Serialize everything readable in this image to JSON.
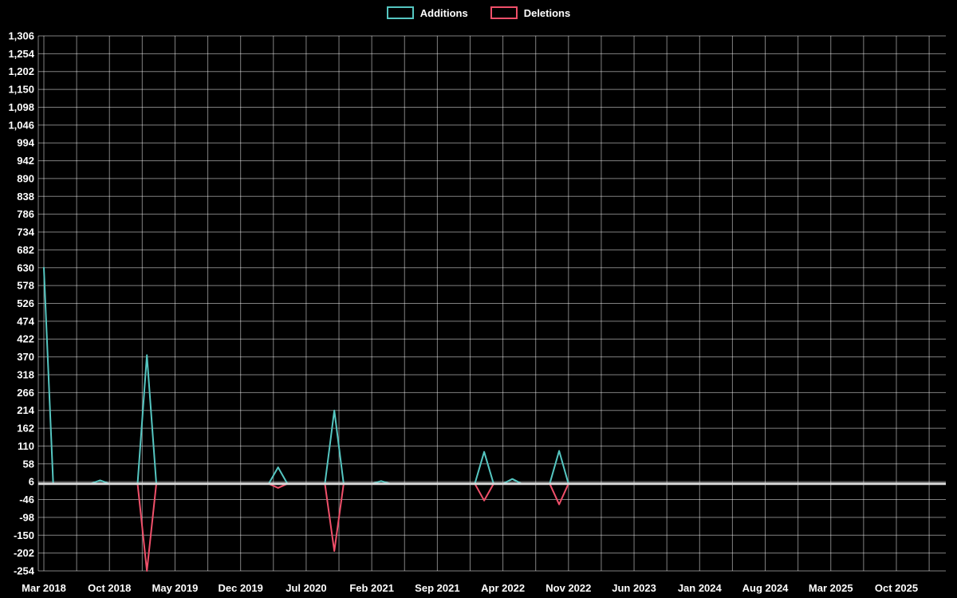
{
  "legend": {
    "position": "top-center",
    "items": [
      {
        "label": "Additions",
        "color": "#55c6c1"
      },
      {
        "label": "Deletions",
        "color": "#f0506a"
      }
    ]
  },
  "chart_data": {
    "type": "line",
    "title": "",
    "background_color": "#000000",
    "grid": true,
    "grid_color": "rgba(255,255,255,0.5)",
    "zero_line_color": "#d9d9d9",
    "x_axis": {
      "start_month": "2018-03",
      "total_months": 96,
      "months_per_tick": 7,
      "tick_labels": [
        "Mar 2018",
        "Oct 2018",
        "May 2019",
        "Dec 2019",
        "Jul 2020",
        "Feb 2021",
        "Sep 2021",
        "Apr 2022",
        "Nov 2022",
        "Jun 2023",
        "Jan 2024",
        "Aug 2024",
        "Mar 2025",
        "Oct 2025"
      ]
    },
    "y_axis": {
      "min": -254,
      "max": 1306,
      "step": 52,
      "tick_labels": [
        "1,306",
        "1,254",
        "1,202",
        "1,150",
        "1,098",
        "1,046",
        "994",
        "942",
        "890",
        "838",
        "786",
        "734",
        "682",
        "630",
        "578",
        "526",
        "474",
        "422",
        "370",
        "318",
        "266",
        "214",
        "162",
        "110",
        "58",
        "6",
        "-46",
        "-98",
        "-150",
        "-202",
        "-254"
      ]
    },
    "series": [
      {
        "name": "Additions",
        "color": "#55c6c1",
        "baseline_value": 0,
        "start_month_index": 0,
        "end_month_index": 58,
        "points": [
          {
            "month_index": 0,
            "label": "Mar 2018",
            "value": 630
          },
          {
            "month_index": 6,
            "label": "Sep 2018",
            "value": 10
          },
          {
            "month_index": 11,
            "label": "Feb 2019",
            "value": 375
          },
          {
            "month_index": 25,
            "label": "Apr 2020",
            "value": 48
          },
          {
            "month_index": 31,
            "label": "Oct 2020",
            "value": 214
          },
          {
            "month_index": 36,
            "label": "Mar 2021",
            "value": 8
          },
          {
            "month_index": 47,
            "label": "Feb 2022",
            "value": 93
          },
          {
            "month_index": 50,
            "label": "May 2022",
            "value": 14
          },
          {
            "month_index": 55,
            "label": "Oct 2022",
            "value": 96
          }
        ]
      },
      {
        "name": "Deletions",
        "color": "#f0506a",
        "baseline_value": 0,
        "start_month_index": 0,
        "end_month_index": 58,
        "points": [
          {
            "month_index": 11,
            "label": "Feb 2019",
            "value": -254
          },
          {
            "month_index": 25,
            "label": "Apr 2020",
            "value": -12
          },
          {
            "month_index": 31,
            "label": "Oct 2020",
            "value": -196
          },
          {
            "month_index": 47,
            "label": "Feb 2022",
            "value": -49
          },
          {
            "month_index": 55,
            "label": "Oct 2022",
            "value": -60
          }
        ]
      }
    ]
  }
}
